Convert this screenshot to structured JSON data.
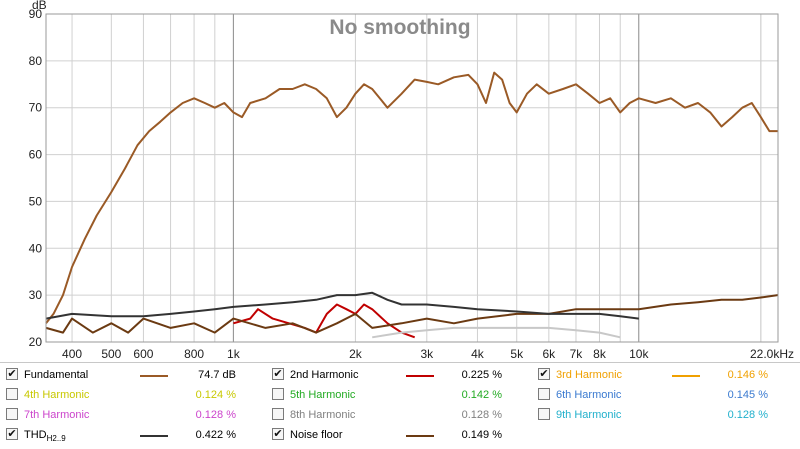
{
  "chart_data": {
    "type": "line",
    "title": "No smoothing",
    "ylabel": "dB",
    "x_scale": "log",
    "xlim": [
      345,
      22050
    ],
    "ylim": [
      20,
      90
    ],
    "grid": true,
    "legend_placement": "bottom",
    "x_ticks": [
      {
        "value": 400,
        "label": "400"
      },
      {
        "value": 500,
        "label": "500"
      },
      {
        "value": 600,
        "label": "600"
      },
      {
        "value": 800,
        "label": "800"
      },
      {
        "value": 1000,
        "label": "1k"
      },
      {
        "value": 2000,
        "label": "2k"
      },
      {
        "value": 3000,
        "label": "3k"
      },
      {
        "value": 4000,
        "label": "4k"
      },
      {
        "value": 5000,
        "label": "5k"
      },
      {
        "value": 6000,
        "label": "6k"
      },
      {
        "value": 7000,
        "label": "7k"
      },
      {
        "value": 8000,
        "label": "8k"
      },
      {
        "value": 10000,
        "label": "10k"
      },
      {
        "value": 22000,
        "label": "22.0kHz"
      }
    ],
    "y_ticks": [
      20,
      30,
      40,
      50,
      60,
      70,
      80,
      90
    ],
    "series": [
      {
        "name": "Fundamental",
        "color": "#9a5a26",
        "points": [
          [
            345,
            24
          ],
          [
            360,
            26
          ],
          [
            380,
            30
          ],
          [
            400,
            36
          ],
          [
            430,
            42
          ],
          [
            460,
            47
          ],
          [
            500,
            52
          ],
          [
            540,
            57
          ],
          [
            580,
            62
          ],
          [
            620,
            65
          ],
          [
            660,
            67
          ],
          [
            700,
            69
          ],
          [
            750,
            71
          ],
          [
            800,
            72
          ],
          [
            850,
            71
          ],
          [
            900,
            70
          ],
          [
            950,
            71
          ],
          [
            1000,
            69
          ],
          [
            1050,
            68
          ],
          [
            1100,
            71
          ],
          [
            1200,
            72
          ],
          [
            1300,
            74
          ],
          [
            1400,
            74
          ],
          [
            1500,
            75
          ],
          [
            1600,
            74
          ],
          [
            1700,
            72
          ],
          [
            1800,
            68
          ],
          [
            1900,
            70
          ],
          [
            2000,
            73
          ],
          [
            2100,
            75
          ],
          [
            2200,
            74
          ],
          [
            2400,
            70
          ],
          [
            2600,
            73
          ],
          [
            2800,
            76
          ],
          [
            3000,
            75.5
          ],
          [
            3200,
            75
          ],
          [
            3500,
            76.5
          ],
          [
            3800,
            77
          ],
          [
            4000,
            75
          ],
          [
            4200,
            71
          ],
          [
            4400,
            77.5
          ],
          [
            4600,
            76
          ],
          [
            4800,
            71
          ],
          [
            5000,
            69
          ],
          [
            5300,
            73
          ],
          [
            5600,
            75
          ],
          [
            6000,
            73
          ],
          [
            6500,
            74
          ],
          [
            7000,
            75
          ],
          [
            7500,
            73
          ],
          [
            8000,
            71
          ],
          [
            8500,
            72
          ],
          [
            9000,
            69
          ],
          [
            9500,
            71
          ],
          [
            10000,
            72
          ],
          [
            11000,
            71
          ],
          [
            12000,
            72
          ],
          [
            13000,
            70
          ],
          [
            14000,
            71
          ],
          [
            15000,
            69
          ],
          [
            16000,
            66
          ],
          [
            17000,
            68
          ],
          [
            18000,
            70
          ],
          [
            19000,
            71
          ],
          [
            20000,
            68
          ],
          [
            21000,
            65
          ],
          [
            22000,
            65
          ]
        ]
      },
      {
        "name": "2nd Harmonic",
        "color": "#c00000",
        "points": [
          [
            1000,
            24
          ],
          [
            1100,
            25
          ],
          [
            1150,
            27
          ],
          [
            1250,
            25
          ],
          [
            1500,
            23
          ],
          [
            1600,
            22
          ],
          [
            1700,
            26
          ],
          [
            1800,
            28
          ],
          [
            1900,
            27
          ],
          [
            2000,
            26
          ],
          [
            2100,
            28
          ],
          [
            2200,
            27
          ],
          [
            2400,
            24
          ],
          [
            2600,
            22
          ],
          [
            2800,
            21
          ]
        ]
      },
      {
        "name": "Noise floor",
        "color": "#6b3a12",
        "points": [
          [
            345,
            23
          ],
          [
            380,
            22
          ],
          [
            400,
            25
          ],
          [
            450,
            22
          ],
          [
            500,
            24
          ],
          [
            550,
            22
          ],
          [
            600,
            25
          ],
          [
            700,
            23
          ],
          [
            800,
            24
          ],
          [
            900,
            22
          ],
          [
            1000,
            25
          ],
          [
            1200,
            23
          ],
          [
            1400,
            24
          ],
          [
            1600,
            22
          ],
          [
            1800,
            24
          ],
          [
            2000,
            26
          ],
          [
            2200,
            23
          ],
          [
            2600,
            24
          ],
          [
            3000,
            25
          ],
          [
            3500,
            24
          ],
          [
            4000,
            25
          ],
          [
            5000,
            26
          ],
          [
            6000,
            26
          ],
          [
            7000,
            27
          ],
          [
            8000,
            27
          ],
          [
            9000,
            27
          ],
          [
            10000,
            27
          ],
          [
            12000,
            28
          ],
          [
            14000,
            28.5
          ],
          [
            16000,
            29
          ],
          [
            18000,
            29
          ],
          [
            20000,
            29.5
          ],
          [
            22000,
            30
          ]
        ]
      },
      {
        "name": "THD",
        "color": "#333333",
        "points": [
          [
            345,
            25
          ],
          [
            400,
            26
          ],
          [
            500,
            25.5
          ],
          [
            600,
            25.5
          ],
          [
            700,
            26
          ],
          [
            800,
            26.5
          ],
          [
            900,
            27
          ],
          [
            1000,
            27.5
          ],
          [
            1200,
            28
          ],
          [
            1400,
            28.5
          ],
          [
            1600,
            29
          ],
          [
            1800,
            30
          ],
          [
            2000,
            30
          ],
          [
            2200,
            30.5
          ],
          [
            2400,
            29
          ],
          [
            2600,
            28
          ],
          [
            3000,
            28
          ],
          [
            3500,
            27.5
          ],
          [
            4000,
            27
          ],
          [
            5000,
            26.5
          ],
          [
            6000,
            26
          ],
          [
            7000,
            26
          ],
          [
            8000,
            26
          ],
          [
            9000,
            25.5
          ],
          [
            10000,
            25
          ]
        ]
      },
      {
        "name": "8th Harmonic",
        "color": "#c8c8c8",
        "points": [
          [
            2200,
            21
          ],
          [
            2600,
            22
          ],
          [
            3000,
            22.5
          ],
          [
            3500,
            23
          ],
          [
            4000,
            23
          ],
          [
            5000,
            23
          ],
          [
            6000,
            23
          ],
          [
            7000,
            22.5
          ],
          [
            8000,
            22
          ],
          [
            9000,
            21
          ]
        ]
      }
    ]
  },
  "legend": [
    {
      "label": "Fundamental",
      "value": "74.7 dB",
      "checked": true,
      "color": "#9a5a26",
      "label_color": "#000000",
      "value_color": "#000000"
    },
    {
      "label": "2nd Harmonic",
      "value": "0.225 %",
      "checked": true,
      "color": "#c00000",
      "label_color": "#000000",
      "value_color": "#000000"
    },
    {
      "label": "3rd Harmonic",
      "value": "0.146 %",
      "checked": true,
      "color": "#f0a000",
      "label_color": "#f0a000",
      "value_color": "#f0a000"
    },
    {
      "label": "4th Harmonic",
      "value": "0.124 %",
      "checked": false,
      "color": "",
      "label_color": "#c8c800",
      "value_color": "#c8c800"
    },
    {
      "label": "5th Harmonic",
      "value": "0.142 %",
      "checked": false,
      "color": "",
      "label_color": "#22aa22",
      "value_color": "#22aa22"
    },
    {
      "label": "6th Harmonic",
      "value": "0.145 %",
      "checked": false,
      "color": "",
      "label_color": "#3a7ad0",
      "value_color": "#3a7ad0"
    },
    {
      "label": "7th Harmonic",
      "value": "0.128 %",
      "checked": false,
      "color": "",
      "label_color": "#cc44cc",
      "value_color": "#cc44cc"
    },
    {
      "label": "8th Harmonic",
      "value": "0.128 %",
      "checked": false,
      "color": "",
      "label_color": "#808080",
      "value_color": "#808080"
    },
    {
      "label": "9th Harmonic",
      "value": "0.128 %",
      "checked": false,
      "color": "",
      "label_color": "#22b0cc",
      "value_color": "#22b0cc"
    },
    {
      "label": "THD",
      "label_sub": "H2..9",
      "value": "0.422 %",
      "checked": true,
      "color": "#333333",
      "label_color": "#000000",
      "value_color": "#000000"
    },
    {
      "label": "Noise floor",
      "value": "0.149 %",
      "checked": true,
      "color": "#6b3a12",
      "label_color": "#000000",
      "value_color": "#000000"
    }
  ]
}
